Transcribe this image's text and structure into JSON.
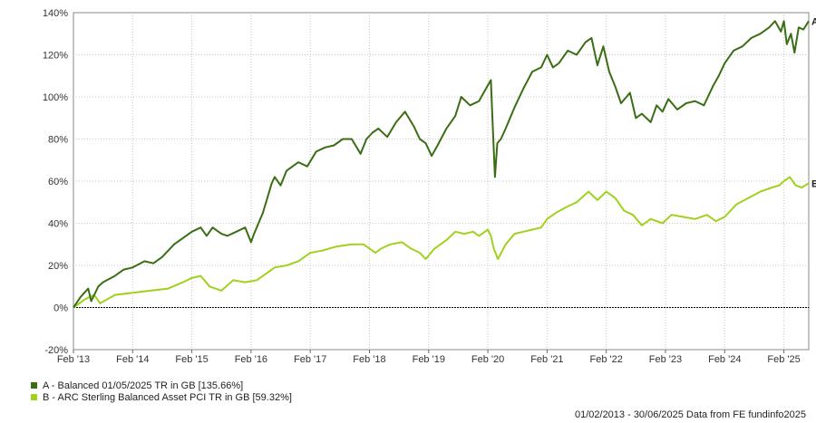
{
  "chart_data": {
    "type": "line",
    "title": "",
    "xlabel": "",
    "ylabel": "",
    "ylim": [
      -20,
      140
    ],
    "y_ticks": [
      -20,
      0,
      20,
      40,
      60,
      80,
      100,
      120,
      140
    ],
    "y_tick_labels": [
      "-20%",
      "0%",
      "20%",
      "40%",
      "60%",
      "80%",
      "100%",
      "120%",
      "140%"
    ],
    "x_range": [
      2013.0,
      2025.42
    ],
    "x_ticks": [
      2013.0,
      2014.0,
      2015.0,
      2016.0,
      2017.0,
      2018.0,
      2019.0,
      2020.0,
      2021.0,
      2022.0,
      2023.0,
      2024.0,
      2025.0
    ],
    "x_tick_labels": [
      "Feb '13",
      "Feb '14",
      "Feb '15",
      "Feb '16",
      "Feb '17",
      "Feb '18",
      "Feb '19",
      "Feb '20",
      "Feb '21",
      "Feb '22",
      "Feb '23",
      "Feb '24",
      "Feb '25"
    ],
    "grid": true,
    "legend_position": "bottom-left",
    "series": [
      {
        "name": "A - Balanced 01/05/2025 TR in GB [135.66%]",
        "end_label": "A",
        "color": "#3a6e14",
        "x": [
          2013.0,
          2013.12,
          2013.25,
          2013.3,
          2013.42,
          2013.5,
          2013.7,
          2013.85,
          2014.0,
          2014.2,
          2014.35,
          2014.5,
          2014.7,
          2014.85,
          2015.0,
          2015.15,
          2015.25,
          2015.35,
          2015.5,
          2015.6,
          2015.75,
          2015.9,
          2016.0,
          2016.05,
          2016.2,
          2016.35,
          2016.4,
          2016.5,
          2016.6,
          2016.8,
          2016.95,
          2017.1,
          2017.25,
          2017.4,
          2017.55,
          2017.7,
          2017.85,
          2017.95,
          2018.05,
          2018.15,
          2018.3,
          2018.45,
          2018.6,
          2018.75,
          2018.85,
          2018.95,
          2019.05,
          2019.15,
          2019.3,
          2019.45,
          2019.55,
          2019.7,
          2019.85,
          2019.95,
          2020.05,
          2020.08,
          2020.12,
          2020.16,
          2020.22,
          2020.3,
          2020.45,
          2020.6,
          2020.75,
          2020.9,
          2021.0,
          2021.1,
          2021.2,
          2021.35,
          2021.5,
          2021.65,
          2021.75,
          2021.85,
          2021.95,
          2022.05,
          2022.15,
          2022.25,
          2022.4,
          2022.5,
          2022.6,
          2022.75,
          2022.85,
          2022.95,
          2023.05,
          2023.2,
          2023.35,
          2023.5,
          2023.65,
          2023.8,
          2023.9,
          2024.0,
          2024.15,
          2024.3,
          2024.45,
          2024.6,
          2024.75,
          2024.85,
          2024.95,
          2025.0,
          2025.05,
          2025.12,
          2025.18,
          2025.25,
          2025.33,
          2025.42
        ],
        "y": [
          0,
          5,
          9,
          3,
          10,
          12,
          15,
          18,
          19,
          22,
          21,
          24,
          30,
          33,
          36,
          38,
          34,
          38,
          35,
          34,
          36,
          38,
          31,
          35,
          45,
          59,
          62,
          58,
          65,
          69,
          67,
          74,
          76,
          77,
          80,
          80,
          73,
          80,
          83,
          85,
          81,
          88,
          93,
          86,
          80,
          78,
          72,
          77,
          85,
          91,
          100,
          96,
          98,
          103,
          108,
          88,
          62,
          78,
          80,
          85,
          95,
          104,
          112,
          114,
          120,
          114,
          116,
          122,
          120,
          126,
          128,
          115,
          124,
          112,
          105,
          97,
          102,
          90,
          92,
          88,
          96,
          93,
          99,
          94,
          97,
          98,
          96,
          105,
          110,
          116,
          122,
          124,
          128,
          130,
          133,
          136,
          131,
          136,
          125,
          130,
          121,
          133,
          132,
          136
        ]
      },
      {
        "name": "B - ARC Sterling Balanced Asset PCI TR in GB [59.32%]",
        "end_label": "B",
        "color": "#9fd11e",
        "x": [
          2013.0,
          2013.2,
          2013.35,
          2013.45,
          2013.7,
          2014.0,
          2014.3,
          2014.6,
          2014.85,
          2015.0,
          2015.15,
          2015.3,
          2015.5,
          2015.7,
          2015.9,
          2016.1,
          2016.25,
          2016.4,
          2016.6,
          2016.8,
          2017.0,
          2017.2,
          2017.45,
          2017.7,
          2017.9,
          2018.1,
          2018.2,
          2018.35,
          2018.55,
          2018.7,
          2018.85,
          2018.95,
          2019.1,
          2019.3,
          2019.45,
          2019.6,
          2019.75,
          2019.85,
          2020.0,
          2020.05,
          2020.1,
          2020.17,
          2020.3,
          2020.45,
          2020.6,
          2020.75,
          2020.9,
          2021.0,
          2021.15,
          2021.35,
          2021.5,
          2021.7,
          2021.85,
          2022.0,
          2022.15,
          2022.3,
          2022.45,
          2022.6,
          2022.75,
          2022.95,
          2023.1,
          2023.3,
          2023.5,
          2023.7,
          2023.85,
          2024.0,
          2024.2,
          2024.4,
          2024.6,
          2024.8,
          2024.92,
          2025.0,
          2025.1,
          2025.2,
          2025.3,
          2025.42
        ],
        "y": [
          0,
          4,
          6,
          2,
          6,
          7,
          8,
          9,
          12,
          14,
          15,
          10,
          8,
          13,
          12,
          13,
          16,
          19,
          20,
          22,
          26,
          27,
          29,
          30,
          30,
          26,
          28,
          30,
          31,
          28,
          26,
          23,
          28,
          32,
          36,
          35,
          36,
          34,
          37,
          34,
          28,
          23,
          30,
          35,
          36,
          37,
          38,
          42,
          45,
          48,
          50,
          55,
          51,
          55,
          52,
          46,
          44,
          39,
          42,
          40,
          44,
          43,
          42,
          44,
          41,
          43,
          49,
          52,
          55,
          57,
          58,
          60,
          62,
          58,
          57,
          59
        ]
      }
    ]
  },
  "footer": {
    "range_text": "01/02/2013 - 30/06/2025 Data from FE fundinfo2025"
  }
}
